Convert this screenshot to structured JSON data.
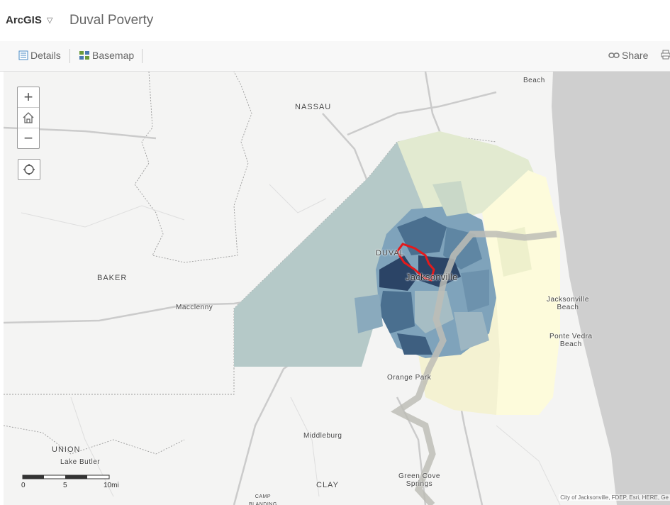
{
  "header": {
    "brand": "ArcGIS",
    "caret": "▽",
    "title": "Duval Poverty"
  },
  "toolbar": {
    "details": "Details",
    "basemap": "Basemap",
    "share": "Share"
  },
  "zoom": {
    "in": "+",
    "out": "−"
  },
  "labels": {
    "fernandina": "Beach",
    "nassau": "NASSAU",
    "baker": "BAKER",
    "macclenny": "Macclenny",
    "duval": "DUVAL",
    "jacksonville": "Jacksonville",
    "jax_beach": "Jacksonville\nBeach",
    "ponte_vedra": "Ponte Vedra\nBeach",
    "orange_park": "Orange Park",
    "union": "UNION",
    "lake_butler": "Lake Butler",
    "middleburg": "Middleburg",
    "clay": "CLAY",
    "green_cove": "Green Cove\nSprings",
    "camp_blanding": "CAMP\nBLANDING"
  },
  "scale": {
    "ticks": [
      "0",
      "5",
      "10mi"
    ]
  },
  "attribution": "City of Jacksonville, FDEP, Esri, HERE, Ge",
  "colors": {
    "darkest": "#2b4466",
    "dark": "#4a6f8f",
    "mid": "#7fa3bb",
    "light": "#b5c9c8",
    "pale": "#e2ead0",
    "lightest": "#fdfbdb",
    "highlight": "#e31a1c",
    "ocean": "#cfcfcf"
  }
}
